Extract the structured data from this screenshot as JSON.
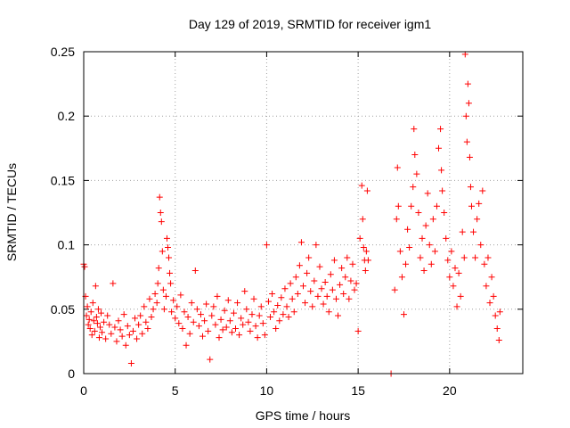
{
  "chart_data": {
    "type": "scatter",
    "title": "Day 129 of 2019, SRMTID for receiver igm1",
    "xlabel": "GPS time / hours",
    "ylabel": "SRMTID / TECUs",
    "xlim": [
      0,
      24
    ],
    "ylim": [
      0,
      0.25
    ],
    "grid": true,
    "marker": "plus",
    "color": "#ff0000",
    "x_ticks": [
      0,
      5,
      10,
      15,
      20
    ],
    "x_tick_labels": [
      "0",
      "5",
      "10",
      "15",
      "20"
    ],
    "y_ticks": [
      0,
      0.05,
      0.1,
      0.15,
      0.2,
      0.25
    ],
    "y_tick_labels": [
      "0",
      "0.05",
      "0.1",
      "0.15",
      "0.2",
      "0.25"
    ],
    "series": [
      {
        "name": "igm1",
        "points": [
          [
            0.0,
            0.085
          ],
          [
            0.05,
            0.083
          ],
          [
            0.1,
            0.06
          ],
          [
            0.15,
            0.045
          ],
          [
            0.2,
            0.052
          ],
          [
            0.25,
            0.038
          ],
          [
            0.3,
            0.042
          ],
          [
            0.35,
            0.035
          ],
          [
            0.4,
            0.048
          ],
          [
            0.45,
            0.03
          ],
          [
            0.5,
            0.055
          ],
          [
            0.55,
            0.041
          ],
          [
            0.6,
            0.033
          ],
          [
            0.65,
            0.068
          ],
          [
            0.7,
            0.044
          ],
          [
            0.75,
            0.039
          ],
          [
            0.8,
            0.05
          ],
          [
            0.85,
            0.028
          ],
          [
            0.9,
            0.036
          ],
          [
            0.95,
            0.047
          ],
          [
            1.0,
            0.032
          ],
          [
            1.1,
            0.04
          ],
          [
            1.2,
            0.027
          ],
          [
            1.3,
            0.045
          ],
          [
            1.4,
            0.038
          ],
          [
            1.5,
            0.031
          ],
          [
            1.6,
            0.07
          ],
          [
            1.7,
            0.036
          ],
          [
            1.8,
            0.025
          ],
          [
            1.9,
            0.041
          ],
          [
            2.0,
            0.034
          ],
          [
            2.1,
            0.029
          ],
          [
            2.2,
            0.046
          ],
          [
            2.3,
            0.022
          ],
          [
            2.4,
            0.037
          ],
          [
            2.5,
            0.03
          ],
          [
            2.6,
            0.008
          ],
          [
            2.7,
            0.033
          ],
          [
            2.8,
            0.043
          ],
          [
            2.9,
            0.027
          ],
          [
            3.0,
            0.038
          ],
          [
            3.1,
            0.045
          ],
          [
            3.2,
            0.031
          ],
          [
            3.3,
            0.052
          ],
          [
            3.4,
            0.04
          ],
          [
            3.5,
            0.035
          ],
          [
            3.6,
            0.058
          ],
          [
            3.7,
            0.044
          ],
          [
            3.8,
            0.05
          ],
          [
            3.9,
            0.062
          ],
          [
            4.0,
            0.055
          ],
          [
            4.05,
            0.07
          ],
          [
            4.1,
            0.082
          ],
          [
            4.15,
            0.137
          ],
          [
            4.2,
            0.125
          ],
          [
            4.25,
            0.118
          ],
          [
            4.3,
            0.095
          ],
          [
            4.35,
            0.065
          ],
          [
            4.4,
            0.05
          ],
          [
            4.5,
            0.06
          ],
          [
            4.55,
            0.105
          ],
          [
            4.6,
            0.098
          ],
          [
            4.65,
            0.09
          ],
          [
            4.7,
            0.078
          ],
          [
            4.75,
            0.07
          ],
          [
            4.8,
            0.048
          ],
          [
            4.9,
            0.057
          ],
          [
            5.0,
            0.043
          ],
          [
            5.1,
            0.052
          ],
          [
            5.2,
            0.039
          ],
          [
            5.3,
            0.061
          ],
          [
            5.4,
            0.035
          ],
          [
            5.5,
            0.048
          ],
          [
            5.6,
            0.022
          ],
          [
            5.7,
            0.044
          ],
          [
            5.8,
            0.031
          ],
          [
            5.9,
            0.055
          ],
          [
            6.0,
            0.04
          ],
          [
            6.1,
            0.08
          ],
          [
            6.2,
            0.05
          ],
          [
            6.3,
            0.037
          ],
          [
            6.4,
            0.046
          ],
          [
            6.5,
            0.029
          ],
          [
            6.6,
            0.041
          ],
          [
            6.7,
            0.054
          ],
          [
            6.8,
            0.033
          ],
          [
            6.9,
            0.011
          ],
          [
            7.0,
            0.045
          ],
          [
            7.1,
            0.052
          ],
          [
            7.2,
            0.038
          ],
          [
            7.3,
            0.06
          ],
          [
            7.4,
            0.028
          ],
          [
            7.5,
            0.042
          ],
          [
            7.6,
            0.034
          ],
          [
            7.7,
            0.049
          ],
          [
            7.8,
            0.036
          ],
          [
            7.9,
            0.057
          ],
          [
            8.0,
            0.041
          ],
          [
            8.1,
            0.032
          ],
          [
            8.2,
            0.047
          ],
          [
            8.3,
            0.035
          ],
          [
            8.4,
            0.055
          ],
          [
            8.5,
            0.03
          ],
          [
            8.6,
            0.043
          ],
          [
            8.7,
            0.038
          ],
          [
            8.8,
            0.064
          ],
          [
            8.9,
            0.05
          ],
          [
            9.0,
            0.04
          ],
          [
            9.1,
            0.033
          ],
          [
            9.2,
            0.046
          ],
          [
            9.3,
            0.058
          ],
          [
            9.4,
            0.037
          ],
          [
            9.5,
            0.028
          ],
          [
            9.6,
            0.045
          ],
          [
            9.7,
            0.052
          ],
          [
            9.8,
            0.039
          ],
          [
            9.9,
            0.03
          ],
          [
            10.0,
            0.1
          ],
          [
            10.1,
            0.056
          ],
          [
            10.2,
            0.044
          ],
          [
            10.3,
            0.062
          ],
          [
            10.4,
            0.048
          ],
          [
            10.5,
            0.035
          ],
          [
            10.6,
            0.053
          ],
          [
            10.7,
            0.041
          ],
          [
            10.8,
            0.059
          ],
          [
            10.9,
            0.046
          ],
          [
            11.0,
            0.066
          ],
          [
            11.1,
            0.052
          ],
          [
            11.2,
            0.044
          ],
          [
            11.3,
            0.07
          ],
          [
            11.4,
            0.058
          ],
          [
            11.5,
            0.048
          ],
          [
            11.6,
            0.075
          ],
          [
            11.7,
            0.062
          ],
          [
            11.8,
            0.084
          ],
          [
            11.9,
            0.102
          ],
          [
            12.0,
            0.068
          ],
          [
            12.1,
            0.055
          ],
          [
            12.2,
            0.078
          ],
          [
            12.3,
            0.09
          ],
          [
            12.4,
            0.064
          ],
          [
            12.5,
            0.052
          ],
          [
            12.6,
            0.072
          ],
          [
            12.7,
            0.1
          ],
          [
            12.8,
            0.06
          ],
          [
            12.9,
            0.083
          ],
          [
            13.0,
            0.066
          ],
          [
            13.1,
            0.054
          ],
          [
            13.2,
            0.071
          ],
          [
            13.3,
            0.06
          ],
          [
            13.4,
            0.048
          ],
          [
            13.5,
            0.077
          ],
          [
            13.6,
            0.065
          ],
          [
            13.7,
            0.088
          ],
          [
            13.8,
            0.058
          ],
          [
            13.9,
            0.045
          ],
          [
            14.0,
            0.069
          ],
          [
            14.1,
            0.082
          ],
          [
            14.2,
            0.062
          ],
          [
            14.3,
            0.075
          ],
          [
            14.4,
            0.09
          ],
          [
            14.5,
            0.058
          ],
          [
            14.6,
            0.072
          ],
          [
            14.7,
            0.085
          ],
          [
            14.8,
            0.065
          ],
          [
            14.9,
            0.07
          ],
          [
            15.0,
            0.033
          ],
          [
            15.1,
            0.105
          ],
          [
            15.2,
            0.146
          ],
          [
            15.25,
            0.12
          ],
          [
            15.3,
            0.098
          ],
          [
            15.35,
            0.088
          ],
          [
            15.4,
            0.08
          ],
          [
            15.45,
            0.095
          ],
          [
            15.5,
            0.142
          ],
          [
            15.55,
            0.088
          ],
          [
            16.8,
            0.0
          ],
          [
            17.0,
            0.065
          ],
          [
            17.1,
            0.12
          ],
          [
            17.15,
            0.16
          ],
          [
            17.2,
            0.13
          ],
          [
            17.3,
            0.095
          ],
          [
            17.4,
            0.075
          ],
          [
            17.5,
            0.046
          ],
          [
            17.6,
            0.085
          ],
          [
            17.7,
            0.112
          ],
          [
            17.8,
            0.098
          ],
          [
            17.9,
            0.13
          ],
          [
            18.0,
            0.145
          ],
          [
            18.05,
            0.19
          ],
          [
            18.1,
            0.17
          ],
          [
            18.2,
            0.155
          ],
          [
            18.3,
            0.125
          ],
          [
            18.4,
            0.09
          ],
          [
            18.5,
            0.105
          ],
          [
            18.6,
            0.08
          ],
          [
            18.7,
            0.115
          ],
          [
            18.8,
            0.14
          ],
          [
            18.9,
            0.1
          ],
          [
            19.0,
            0.085
          ],
          [
            19.1,
            0.12
          ],
          [
            19.2,
            0.095
          ],
          [
            19.3,
            0.13
          ],
          [
            19.4,
            0.175
          ],
          [
            19.5,
            0.19
          ],
          [
            19.55,
            0.158
          ],
          [
            19.6,
            0.142
          ],
          [
            19.7,
            0.125
          ],
          [
            19.8,
            0.105
          ],
          [
            19.9,
            0.088
          ],
          [
            20.0,
            0.075
          ],
          [
            20.1,
            0.095
          ],
          [
            20.2,
            0.068
          ],
          [
            20.3,
            0.082
          ],
          [
            20.4,
            0.052
          ],
          [
            20.5,
            0.078
          ],
          [
            20.6,
            0.06
          ],
          [
            20.7,
            0.11
          ],
          [
            20.8,
            0.09
          ],
          [
            20.85,
            0.248
          ],
          [
            20.9,
            0.2
          ],
          [
            20.95,
            0.18
          ],
          [
            21.0,
            0.225
          ],
          [
            21.05,
            0.21
          ],
          [
            21.1,
            0.168
          ],
          [
            21.15,
            0.145
          ],
          [
            21.2,
            0.13
          ],
          [
            21.3,
            0.11
          ],
          [
            21.4,
            0.09
          ],
          [
            21.5,
            0.12
          ],
          [
            21.6,
            0.132
          ],
          [
            21.7,
            0.1
          ],
          [
            21.8,
            0.142
          ],
          [
            21.9,
            0.085
          ],
          [
            22.0,
            0.068
          ],
          [
            22.1,
            0.09
          ],
          [
            22.2,
            0.055
          ],
          [
            22.3,
            0.075
          ],
          [
            22.4,
            0.06
          ],
          [
            22.5,
            0.045
          ],
          [
            22.6,
            0.035
          ],
          [
            22.7,
            0.026
          ],
          [
            22.75,
            0.048
          ]
        ]
      }
    ]
  }
}
